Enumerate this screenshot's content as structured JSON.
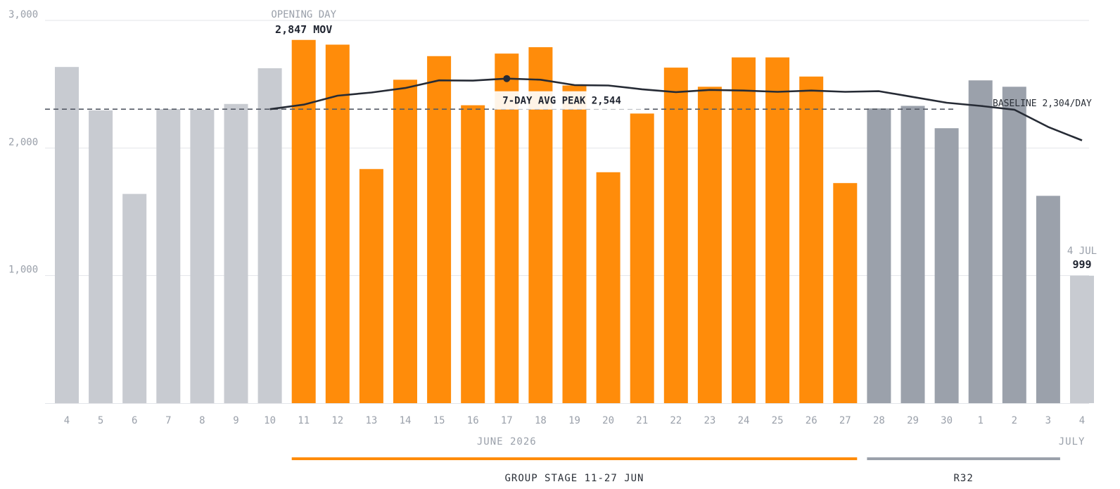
{
  "chart_data": {
    "type": "bar",
    "x": [
      "4",
      "5",
      "6",
      "7",
      "8",
      "9",
      "10",
      "11",
      "12",
      "13",
      "14",
      "15",
      "16",
      "17",
      "18",
      "19",
      "20",
      "21",
      "22",
      "23",
      "24",
      "25",
      "26",
      "27",
      "28",
      "29",
      "30",
      "1",
      "2",
      "3",
      "4"
    ],
    "values": [
      2635,
      2295,
      1640,
      2305,
      2300,
      2345,
      2625,
      2847,
      2810,
      1835,
      2535,
      2720,
      2335,
      2740,
      2790,
      2490,
      1810,
      2270,
      2630,
      2480,
      2710,
      2710,
      2560,
      1725,
      2310,
      2330,
      2155,
      2530,
      2480,
      1625,
      999
    ],
    "segments": [
      "pre",
      "pre",
      "pre",
      "pre",
      "pre",
      "pre",
      "pre",
      "group",
      "group",
      "group",
      "group",
      "group",
      "group",
      "group",
      "group",
      "group",
      "group",
      "group",
      "group",
      "group",
      "group",
      "group",
      "group",
      "group",
      "r32",
      "r32",
      "r32",
      "r32",
      "r32",
      "r32",
      "post"
    ],
    "moving_average": {
      "name": "7-DAY AVG",
      "values": [
        null,
        null,
        null,
        null,
        null,
        null,
        2304,
        2340,
        2410,
        2435,
        2470,
        2530,
        2528,
        2544,
        2535,
        2493,
        2490,
        2460,
        2438,
        2455,
        2450,
        2440,
        2450,
        2440,
        2445,
        2400,
        2355,
        2330,
        2300,
        2165,
        2060
      ]
    },
    "baseline": {
      "value": 2304,
      "label": "BASELINE 2,304/DAY"
    },
    "ylim": [
      0,
      3000
    ],
    "y_ticks": [
      {
        "value": 1000,
        "label": "1,000"
      },
      {
        "value": 2000,
        "label": "2,000"
      },
      {
        "value": 3000,
        "label": "3,000"
      }
    ],
    "month_labels": [
      {
        "text": "JUNE 2026",
        "at": 13
      },
      {
        "text": "JULY",
        "at": 29.7
      }
    ],
    "periods": [
      {
        "label": "GROUP STAGE 11-27 JUN",
        "from": 7,
        "to": 23,
        "color": "#ff8c0a"
      },
      {
        "label": "R32",
        "from": 24,
        "to": 29,
        "color": "#9ba1ab"
      }
    ],
    "annotations": {
      "opening_day": {
        "sub": "OPENING DAY",
        "main": "2,847 MOV",
        "index": 7
      },
      "peak": {
        "label": "7-DAY AVG PEAK 2,544",
        "index": 13
      },
      "last": {
        "sub": "4 JUL",
        "main": "999",
        "index": 30
      }
    },
    "colors": {
      "pre": "#c8cbd1",
      "group": "#ff8c0a",
      "r32": "#9ba1ab",
      "post": "#c8cbd1",
      "avg_line": "#262b35",
      "baseline": "#555b66",
      "grid": "#e3e5e9"
    }
  }
}
